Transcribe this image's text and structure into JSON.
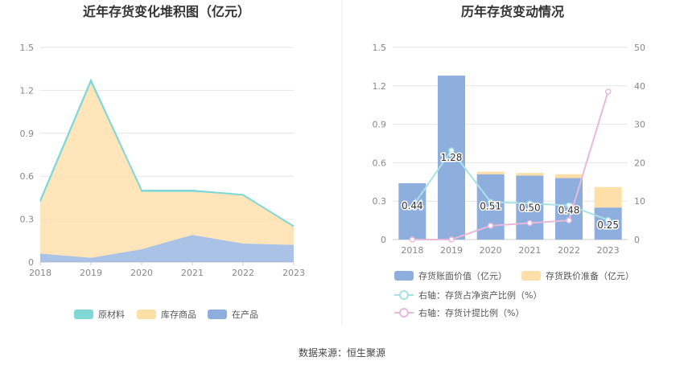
{
  "source": "数据来源：恒生聚源",
  "colors": {
    "raw_material": "#7fd8d6",
    "finished_goods": "#ffdfa8",
    "wip": "#8eaedd",
    "book_value": "#8eaedd",
    "impairment": "#ffdfa8",
    "ratio_assets": "#a9e2e6",
    "ratio_provision": "#e8b9da"
  },
  "chart_data": [
    {
      "type": "area",
      "stacked": true,
      "title": "近年存货变化堆积图（亿元）",
      "categories": [
        "2018",
        "2019",
        "2020",
        "2021",
        "2022",
        "2023"
      ],
      "y_ticks": [
        "0",
        "0.3",
        "0.6",
        "0.9",
        "1.2",
        "1.5"
      ],
      "ylim": [
        0,
        1.5
      ],
      "series": [
        {
          "name": "在产品",
          "values": [
            0.06,
            0.03,
            0.09,
            0.19,
            0.13,
            0.12
          ]
        },
        {
          "name": "库存商品",
          "values": [
            0.35,
            1.22,
            0.4,
            0.3,
            0.34,
            0.13
          ]
        },
        {
          "name": "原材料",
          "values": [
            0.02,
            0.02,
            0.01,
            0.01,
            0.0,
            0.0
          ]
        }
      ],
      "legend": [
        "原材料",
        "库存商品",
        "在产品"
      ],
      "legend_position": "bottom",
      "grid": true
    },
    {
      "type": "bar",
      "stacked": true,
      "title": "历年存货变动情况",
      "categories": [
        "2018",
        "2019",
        "2020",
        "2021",
        "2022",
        "2023"
      ],
      "y_left_ticks": [
        "0",
        "0.3",
        "0.6",
        "0.9",
        "1.2",
        "1.5"
      ],
      "ylim_left": [
        0,
        1.5
      ],
      "y_right_ticks": [
        "0",
        "10",
        "20",
        "30",
        "40",
        "50"
      ],
      "ylim_right": [
        0,
        50
      ],
      "bar_series": [
        {
          "name": "存货账面价值（亿元）",
          "values": [
            0.44,
            1.28,
            0.51,
            0.5,
            0.48,
            0.25
          ],
          "labels": [
            "0.44",
            "1.28",
            "0.51",
            "0.50",
            "0.48",
            "0.25"
          ]
        },
        {
          "name": "存货跌价准备（亿元）",
          "values": [
            0.0,
            0.0,
            0.02,
            0.02,
            0.03,
            0.16
          ]
        }
      ],
      "line_series": [
        {
          "name": "右轴：存货占净资产比例（%）",
          "values": [
            8.5,
            23.2,
            9.8,
            9.4,
            8.9,
            5.1
          ]
        },
        {
          "name": "右轴：存货计提比例（%）",
          "values": [
            0.0,
            0.0,
            3.6,
            4.3,
            5.0,
            38.5
          ]
        }
      ],
      "legend_position": "bottom",
      "grid": true
    }
  ]
}
